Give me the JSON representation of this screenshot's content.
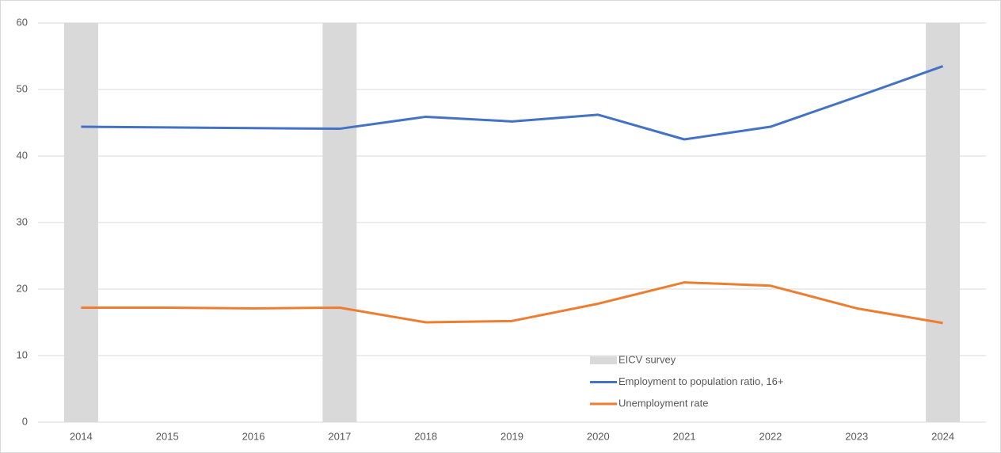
{
  "chart_data": {
    "type": "line",
    "categories": [
      "2014",
      "2015",
      "2016",
      "2017",
      "2018",
      "2019",
      "2020",
      "2021",
      "2022",
      "2023",
      "2024"
    ],
    "series": [
      {
        "name": "EICV survey",
        "type": "bar",
        "color": "#d9d9d9",
        "values": [
          60,
          null,
          null,
          60,
          null,
          null,
          null,
          null,
          null,
          null,
          60
        ]
      },
      {
        "name": "Employment to population ratio, 16+",
        "type": "line",
        "color": "#4472c4",
        "values": [
          44.4,
          44.3,
          44.2,
          44.1,
          45.9,
          45.2,
          46.2,
          42.5,
          44.4,
          48.9,
          53.5
        ]
      },
      {
        "name": "Unemployment rate",
        "type": "line",
        "color": "#ed7d31",
        "values": [
          17.2,
          17.2,
          17.1,
          17.2,
          15.0,
          15.2,
          17.8,
          21.0,
          20.5,
          17.1,
          14.9
        ]
      }
    ],
    "ylim": [
      0,
      60
    ],
    "yticks": [
      0,
      10,
      20,
      30,
      40,
      50,
      60
    ],
    "grid": true,
    "legend": "lower-center"
  }
}
